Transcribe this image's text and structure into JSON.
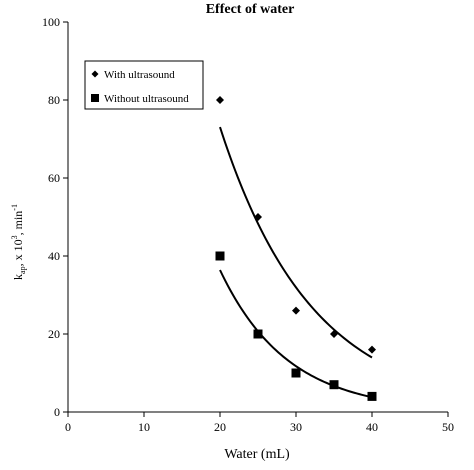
{
  "chart_data": {
    "type": "scatter",
    "title": "Effect of water",
    "xlabel": "Water (mL)",
    "ylabel_main": "k",
    "ylabel_sub": "ap",
    "ylabel_rest": ", x 10",
    "ylabel_exp": "3",
    "ylabel_unit": ", min",
    "ylabel_unit_exp": "-1",
    "xlim": [
      0,
      50
    ],
    "ylim": [
      0,
      100
    ],
    "xticks": [
      0,
      10,
      20,
      30,
      40,
      50
    ],
    "yticks": [
      0,
      20,
      40,
      60,
      80,
      100
    ],
    "grid": false,
    "legend_position": "top-left",
    "series": [
      {
        "name": "With ultrasound",
        "marker": "diamond",
        "color": "#000000",
        "x": [
          20,
          25,
          30,
          35,
          40
        ],
        "y": [
          80,
          50,
          26,
          20,
          16
        ],
        "trendline": "exponential"
      },
      {
        "name": "Without ultrasound",
        "marker": "square",
        "color": "#000000",
        "x": [
          20,
          25,
          30,
          35,
          40
        ],
        "y": [
          40,
          20,
          10,
          7,
          4
        ],
        "trendline": "exponential"
      }
    ]
  }
}
